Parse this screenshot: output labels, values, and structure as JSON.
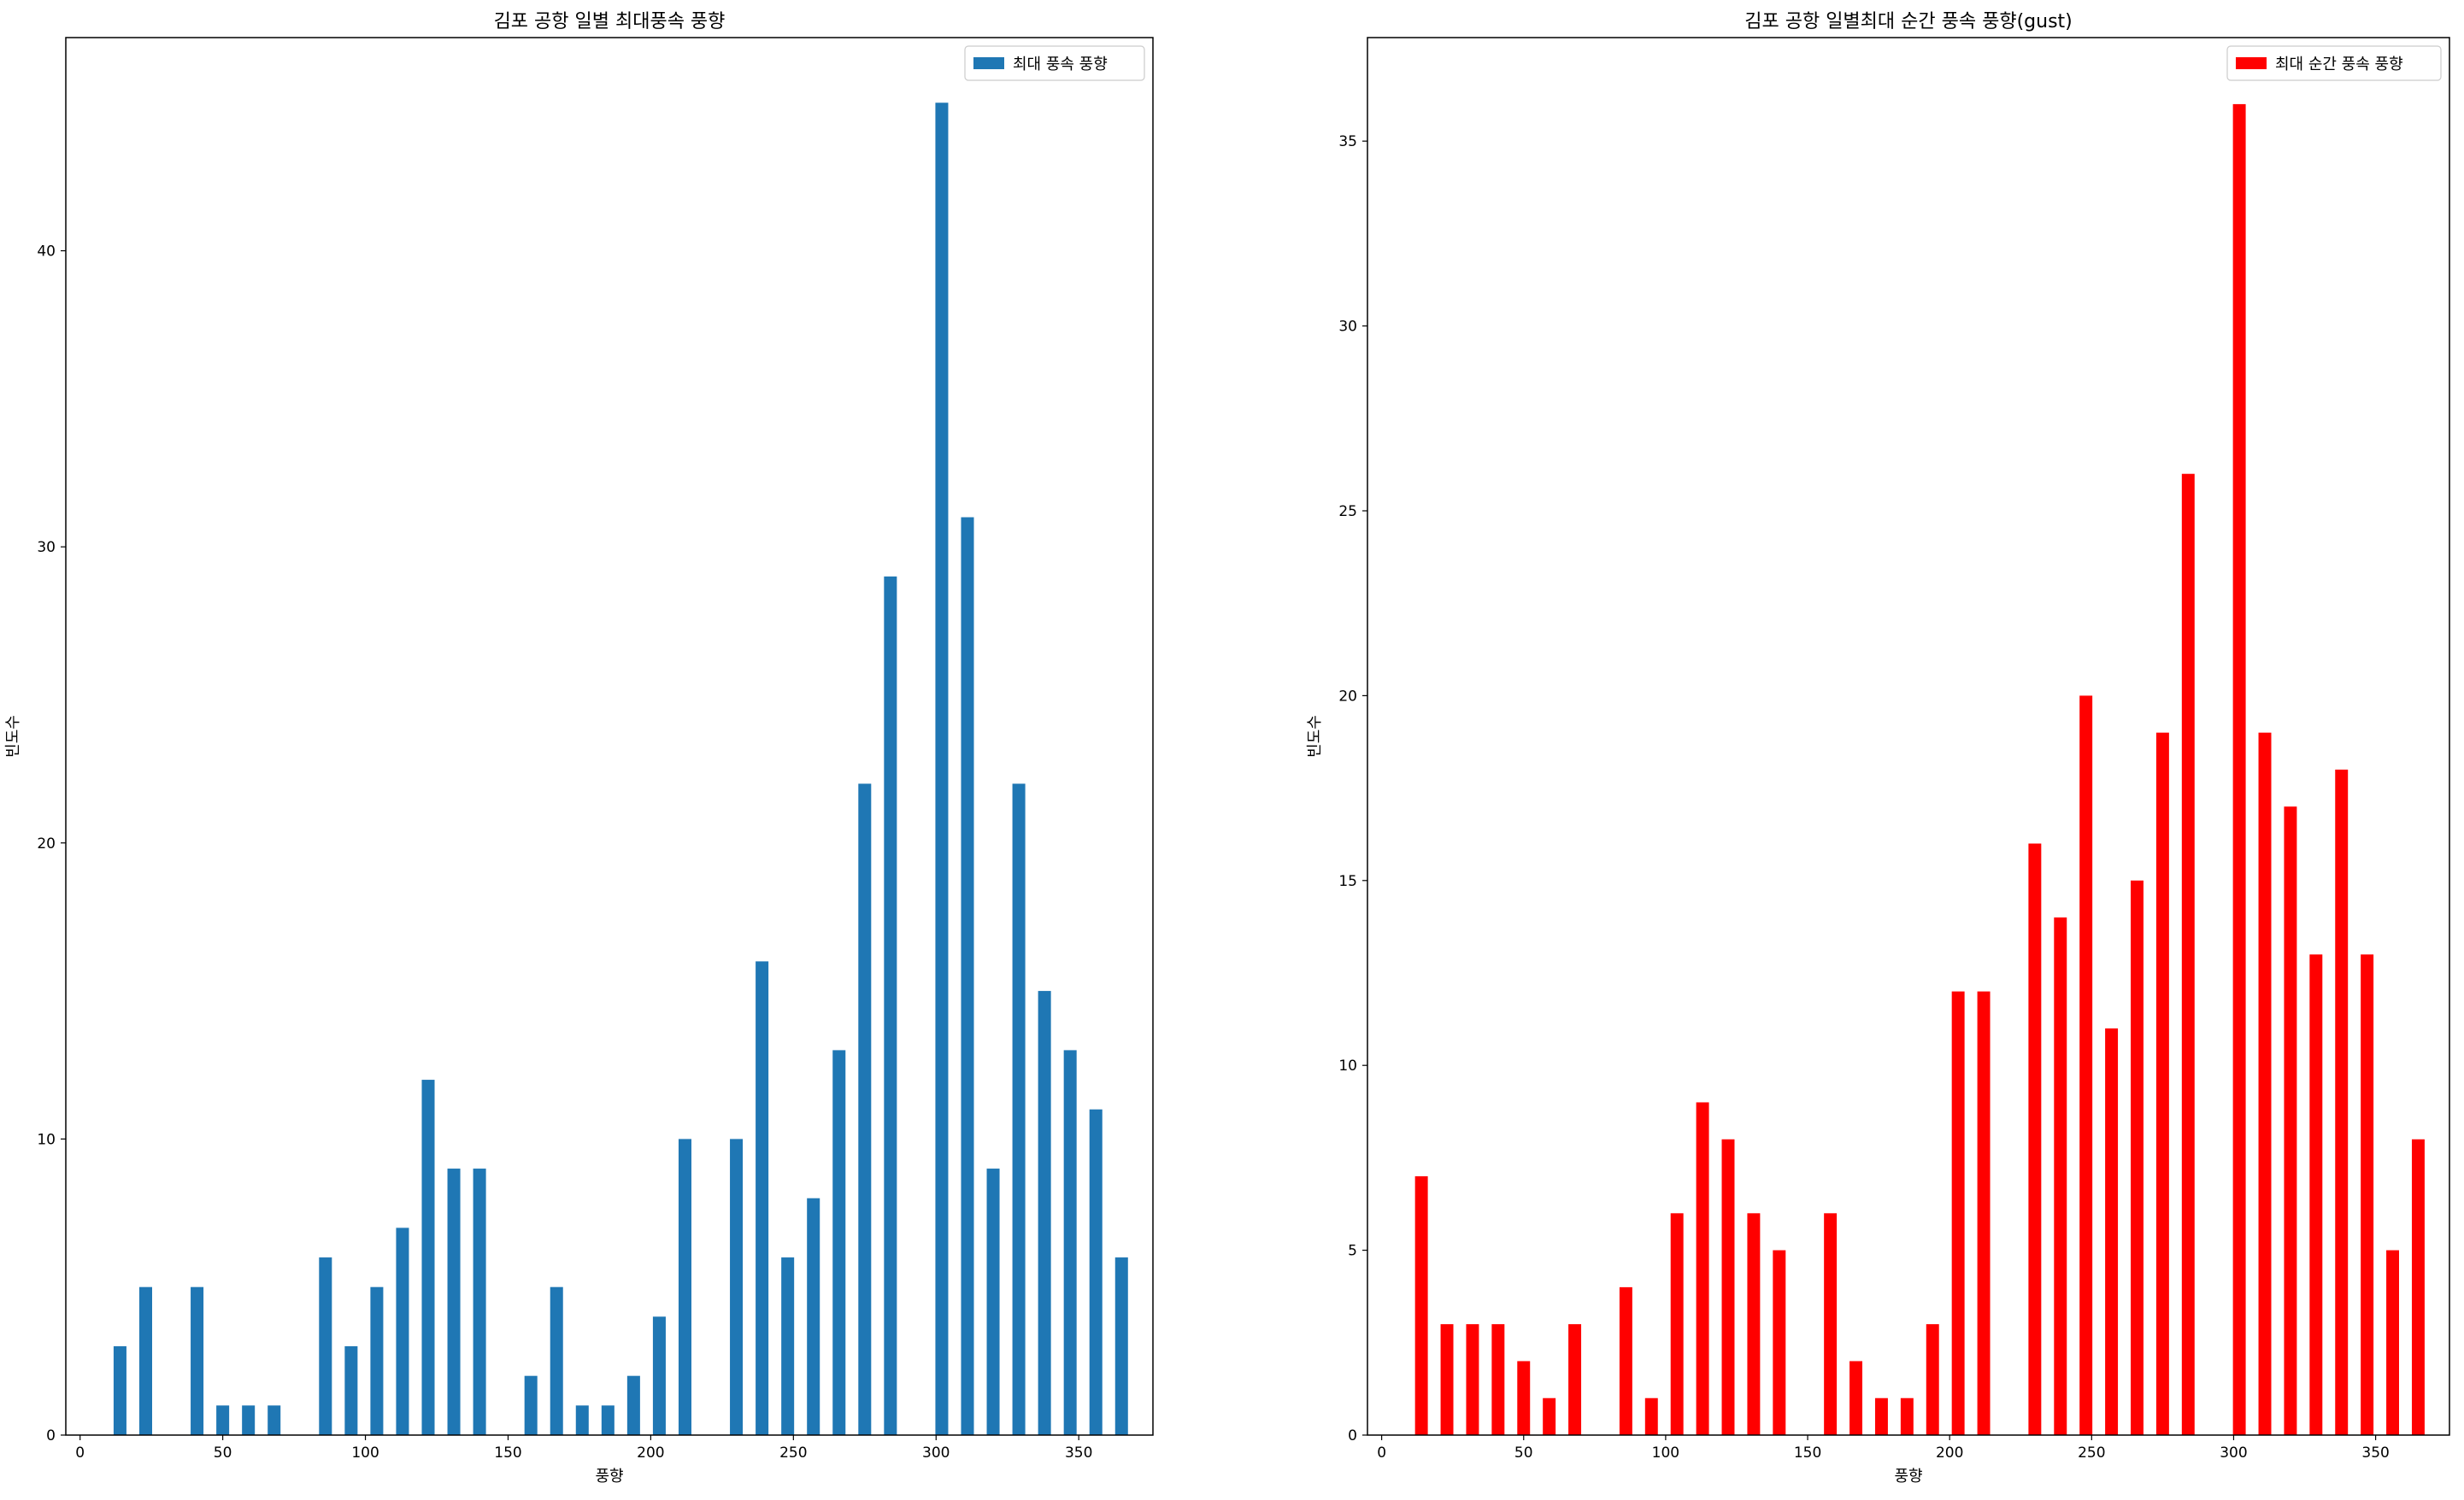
{
  "chart_data": [
    {
      "type": "bar",
      "title": "김포 공항 일별 최대풍속 풍향",
      "xlabel": "풍향",
      "ylabel": "빈도수",
      "xlim": [
        -5,
        376
      ],
      "ylim": [
        0,
        47.2
      ],
      "xticks": [
        0,
        50,
        100,
        150,
        200,
        250,
        300,
        350
      ],
      "yticks": [
        0,
        10,
        20,
        30,
        40
      ],
      "bar_width": 4.5,
      "color": "#1f77b4",
      "legend": {
        "label": "최대 풍속 풍향",
        "position": "upper right"
      },
      "grid": false,
      "x": [
        14,
        23,
        41,
        50,
        59,
        68,
        86,
        95,
        104,
        113,
        122,
        131,
        140,
        158,
        167,
        176,
        185,
        194,
        203,
        212,
        230,
        239,
        248,
        257,
        266,
        275,
        284,
        302,
        311,
        320,
        329,
        338,
        347,
        356,
        365
      ],
      "values": [
        3,
        5,
        5,
        1,
        1,
        1,
        6,
        3,
        5,
        7,
        12,
        9,
        9,
        2,
        5,
        1,
        1,
        2,
        4,
        10,
        10,
        16,
        6,
        8,
        13,
        22,
        29,
        45,
        31,
        9,
        22,
        15,
        13,
        11,
        6
      ]
    },
    {
      "type": "bar",
      "title": "김포 공항 일별최대 순간 풍속 풍향(gust)",
      "xlabel": "풍향",
      "ylabel": "빈도수",
      "xlim": [
        -5,
        376
      ],
      "ylim": [
        0,
        37.8
      ],
      "xticks": [
        0,
        50,
        100,
        150,
        200,
        250,
        300,
        350
      ],
      "yticks": [
        0,
        5,
        10,
        15,
        20,
        25,
        30,
        35
      ],
      "bar_width": 4.5,
      "color": "#ff0000",
      "legend": {
        "label": "최대 순간 풍속 풍향",
        "position": "upper right"
      },
      "grid": false,
      "x": [
        14,
        23,
        32,
        41,
        50,
        59,
        68,
        86,
        95,
        104,
        113,
        122,
        131,
        140,
        158,
        167,
        176,
        185,
        194,
        203,
        212,
        230,
        239,
        248,
        257,
        266,
        275,
        284,
        302,
        311,
        320,
        329,
        338,
        347,
        356,
        365
      ],
      "values": [
        7,
        3,
        3,
        3,
        2,
        1,
        3,
        4,
        1,
        6,
        9,
        8,
        6,
        5,
        6,
        2,
        1,
        1,
        3,
        12,
        12,
        16,
        14,
        20,
        11,
        15,
        19,
        26,
        36,
        19,
        17,
        13,
        18,
        13,
        5,
        8
      ]
    }
  ]
}
